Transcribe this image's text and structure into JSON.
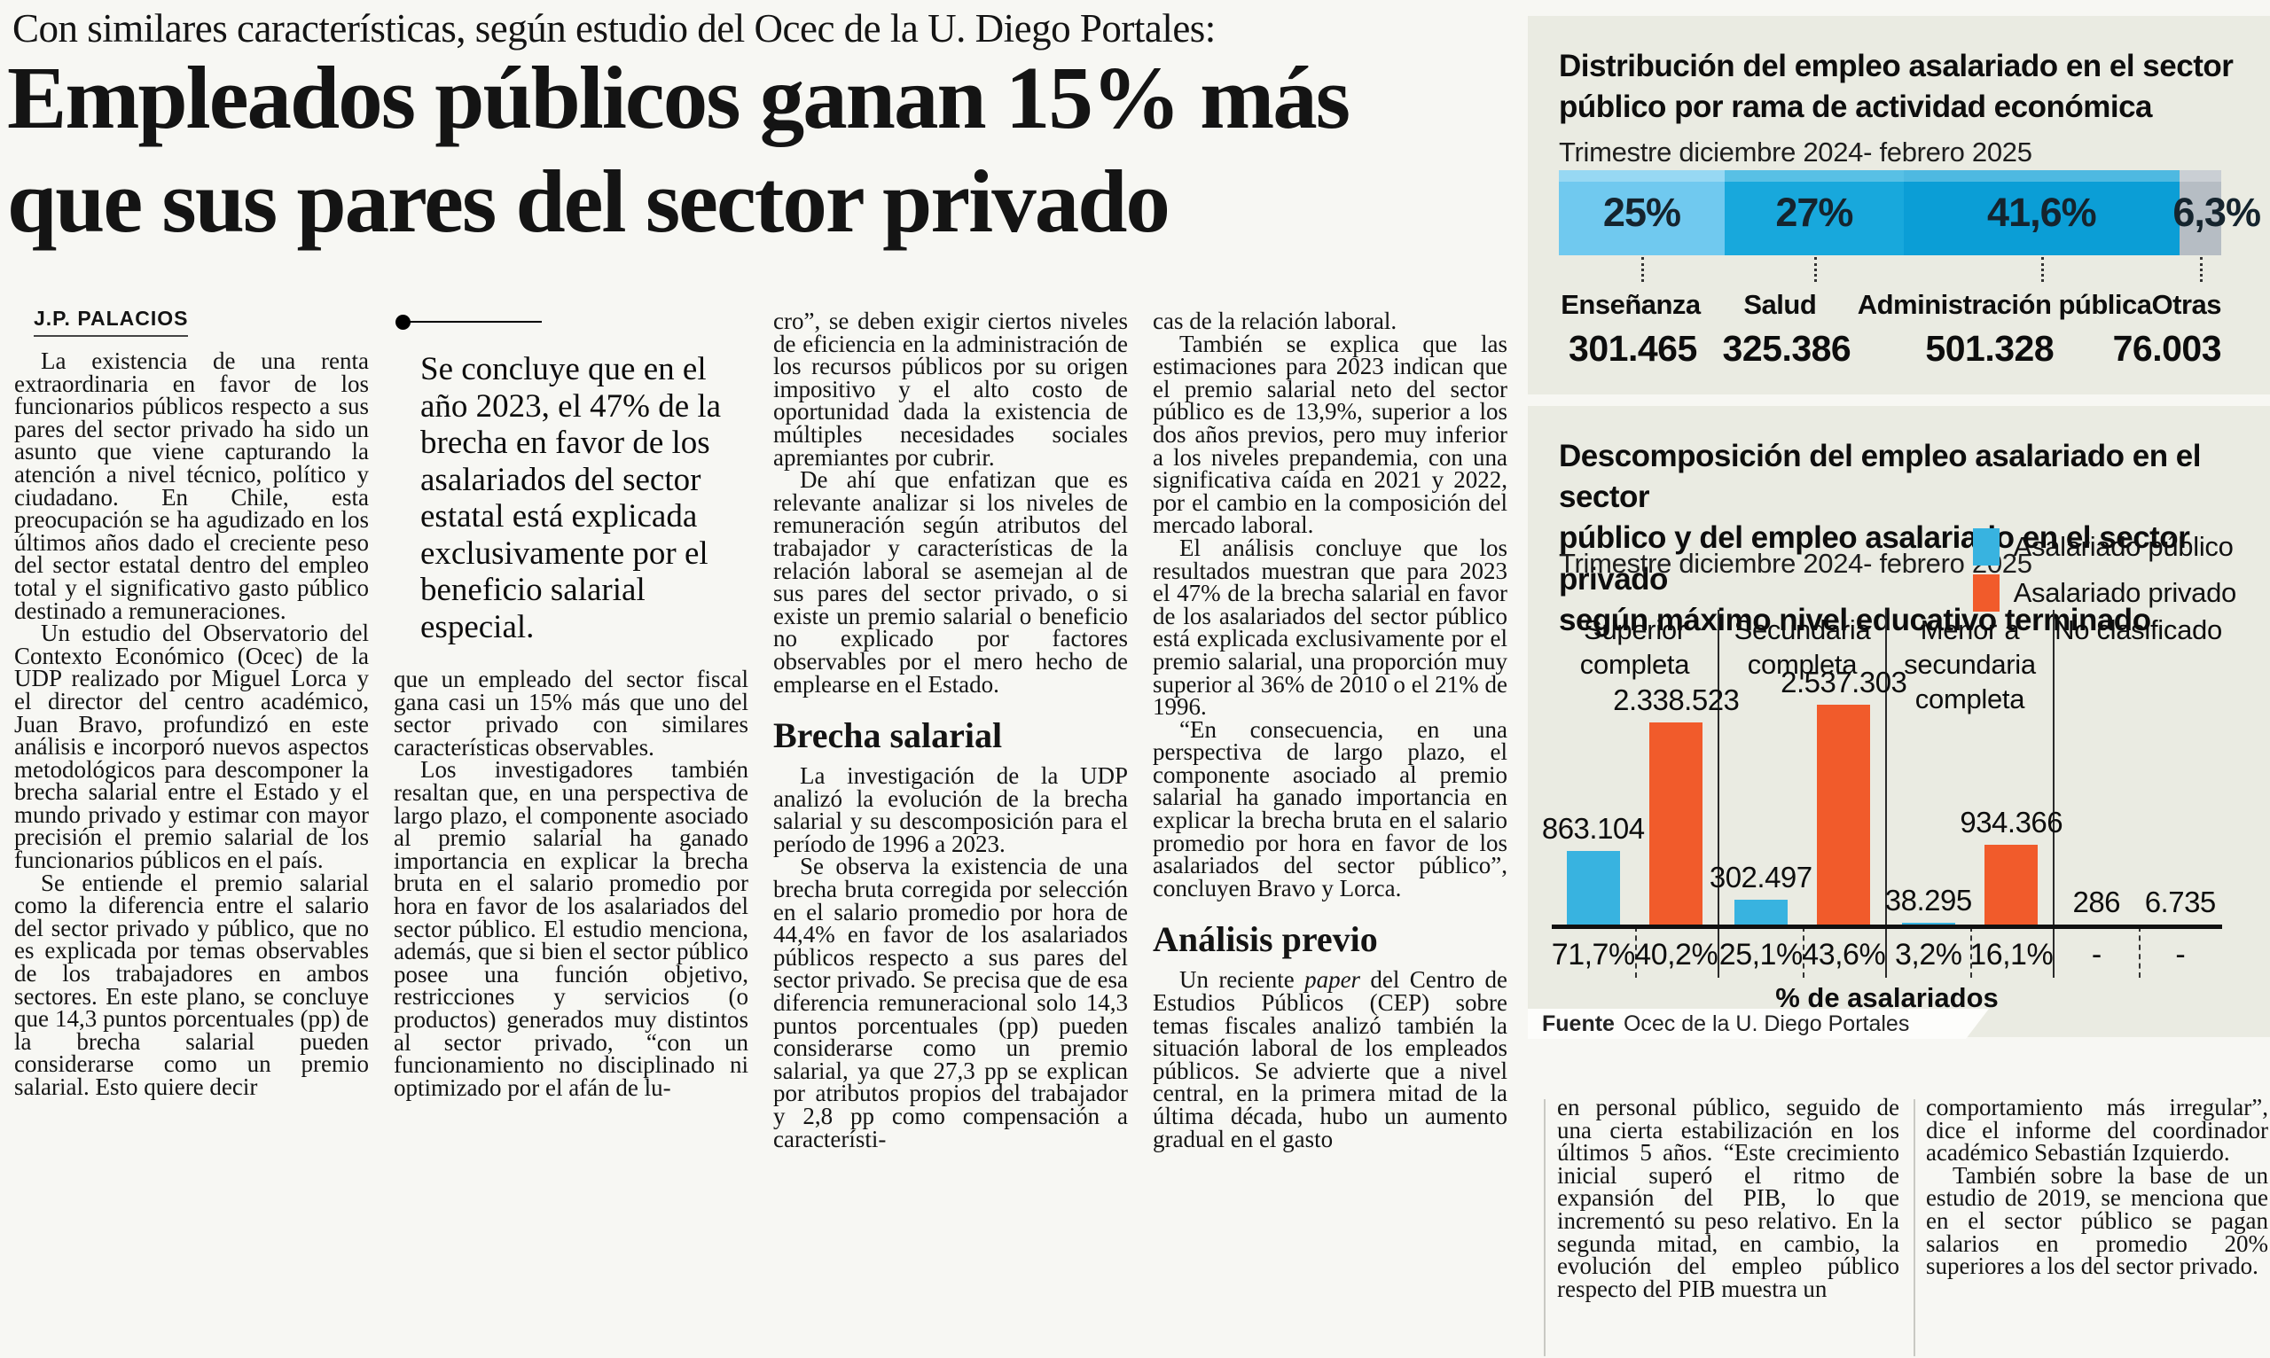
{
  "kicker": "Con similares características, según estudio del Ocec de la U. Diego Portales:",
  "headline_lines": [
    "Empleados públicos ganan 15% más",
    "que sus pares del sector privado"
  ],
  "byline": "J.P. PALACIOS",
  "article": {
    "columns": [
      {
        "blocks": [
          {
            "type": "para",
            "indent": true,
            "text": "La existencia de una renta extraordinaria en favor de los funcionarios públicos respecto a sus pares del sector privado ha sido un asunto que viene capturando la atención a nivel técnico, político y ciudadano. En Chile, esta preocupación se ha agudizado en los últimos años dado el creciente peso del sector estatal dentro del empleo total y el significativo gasto público destinado a remuneraciones."
          },
          {
            "type": "para",
            "indent": true,
            "text": "Un estudio del Observatorio del Contexto Económico (Ocec) de la UDP realizado por Miguel Lorca y el director del centro académico, Juan Bravo, profundizó en este análisis e incorporó nuevos aspectos metodológicos para descomponer la brecha salarial entre el Estado y el mundo privado y estimar con mayor precisión el premio salarial de los funcionarios públicos en el país."
          },
          {
            "type": "para",
            "indent": true,
            "text": "Se entiende el premio salarial como la diferencia entre el salario del sector privado y público, que no es explicada por temas observables de los trabajadores en ambos sectores. En este plano, se concluye que 14,3 puntos porcentuales (pp) de la brecha salarial pueden considerarse como un premio salarial. Esto quiere decir"
          }
        ]
      },
      {
        "blocks": [
          {
            "type": "rule"
          },
          {
            "type": "quote",
            "text": "Se concluye que en el año 2023, el 47% de la brecha en favor de los asalariados del sector estatal está explicada exclusivamente por el beneficio salarial especial."
          },
          {
            "type": "para",
            "indent": false,
            "text": "que un empleado del sector fiscal gana casi un 15% más que uno del sector privado con similares características observables."
          },
          {
            "type": "para",
            "indent": true,
            "text": "Los investigadores también resaltan que, en una perspectiva de largo plazo, el componente asociado al premio salarial ha ganado importancia en explicar la brecha bruta en el salario promedio por hora en favor de los asalariados del sector público. El estudio menciona, además, que si bien el sector público posee una función objetivo, restricciones y servicios (o productos) generados muy distintos al sector privado, “con un funcionamiento no disciplinado ni optimizado por el afán de lu-"
          }
        ]
      },
      {
        "blocks": [
          {
            "type": "para",
            "indent": false,
            "text": "cro”, se deben exigir ciertos niveles de eficiencia en la administración de los recursos públicos por su origen impositivo y el alto costo de oportunidad dada la existencia de múltiples necesidades sociales apremiantes por cubrir."
          },
          {
            "type": "para",
            "indent": true,
            "text": "De ahí que enfatizan que es relevante analizar si los niveles de remuneración según atributos del trabajador y características de la relación laboral se asemejan al de sus pares del sector privado, o si existe un premio salarial o beneficio no explicado por factores observables por el mero hecho de emplearse en el Estado."
          },
          {
            "type": "subhead",
            "text": "Brecha salarial"
          },
          {
            "type": "para",
            "indent": true,
            "text": "La investigación de la UDP analizó la evolución de la brecha salarial y su descomposición para el período de 1996 a 2023."
          },
          {
            "type": "para",
            "indent": true,
            "text": "Se observa la existencia de una brecha bruta corregida por selección en el salario promedio por hora de 44,4% en favor de los asalariados públicos respecto a sus pares del sector privado. Se precisa que de esa diferencia remuneracional solo 14,3 puntos porcentuales (pp) pueden considerarse como un premio salarial, ya que 27,3 pp se explican por atributos propios del trabajador y 2,8 pp como compensación a característi-"
          }
        ]
      },
      {
        "blocks": [
          {
            "type": "para",
            "indent": false,
            "text": "cas de la relación laboral."
          },
          {
            "type": "para",
            "indent": true,
            "text": "También se explica que las estimaciones para 2023 indican que el premio salarial neto del sector público es de 13,9%, superior a los dos años previos, pero muy inferior a los niveles prepandemia, con una significativa caída en 2021 y 2022, por el cambio en la composición del mercado laboral."
          },
          {
            "type": "para",
            "indent": true,
            "text": "El análisis concluye que los resultados muestran que para 2023 el 47% de la brecha salarial en favor de los asalariados del sector público está explicada exclusivamente por el premio salarial, una proporción muy superior al 36% de 2010 o el 21% de 1996."
          },
          {
            "type": "para",
            "indent": true,
            "text": "“En consecuencia, en una perspectiva de largo plazo, el componente asociado al premio salarial ha ganado importancia en explicar la brecha bruta en el salario promedio por hora en favor de los asalariados del sector público”, concluyen Bravo y Lorca."
          },
          {
            "type": "subhead",
            "text": "Análisis previo"
          },
          {
            "type": "para",
            "indent": true,
            "text": "Un reciente *paper* del Centro de Estudios Públicos (CEP) sobre temas fiscales analizó también la situación laboral de los empleados públicos. Se advierte que a nivel central, en la primera mitad de la última década, hubo un aumento gradual en el gasto"
          }
        ]
      }
    ]
  },
  "bottom": {
    "columns": [
      {
        "blocks": [
          {
            "type": "para",
            "indent": false,
            "text": "en personal público, seguido de una cierta estabilización en los últimos 5 años. “Este crecimiento inicial superó el ritmo de expansión del PIB, lo que incrementó su peso relativo. En la segunda mitad, en cambio, la evolución del empleo público respecto del PIB muestra un"
          }
        ]
      },
      {
        "blocks": [
          {
            "type": "para",
            "indent": false,
            "text": "comportamiento más irregular”, dice el informe del coordinador académico Sebastián Izquierdo."
          },
          {
            "type": "para",
            "indent": true,
            "text": "También sobre la base de un estudio de 2019, se menciona que en el sector público se pagan salarios en promedio 20% superiores a los del sector privado."
          }
        ]
      }
    ]
  },
  "chart_data": [
    {
      "type": "bar",
      "variant": "stacked-horizontal",
      "title": "Distribución del empleo asalariado en el sector público por rama de actividad económica",
      "title_lines": [
        "Distribución del empleo asalariado en el sector",
        "público por rama de actividad económica"
      ],
      "subtitle": "Trimestre diciembre 2024- febrero 2025",
      "categories": [
        "Enseñanza",
        "Salud",
        "Administración pública",
        "Otras"
      ],
      "percent_labels": [
        "25%",
        "27%",
        "41,6%",
        "6,3%"
      ],
      "percents": [
        25,
        27,
        41.6,
        6.3
      ],
      "value_labels": [
        "301.465",
        "325.386",
        "501.328",
        "76.003"
      ],
      "values": [
        301465,
        325386,
        501328,
        76003
      ],
      "colors": [
        "#70c9ef",
        "#18a8dc",
        "#0b9ed6",
        "#b6bdc4"
      ],
      "legend_position": "none",
      "grid": false
    },
    {
      "type": "bar",
      "variant": "grouped-vertical",
      "title": "Descomposición del empleo asalariado en el sector público y del empleo asalariado en el sector privado según máximo nivel educativo terminado",
      "title_lines": [
        "Descomposición del empleo asalariado en el sector",
        "público y del empleo asalariado en el sector privado",
        "según máximo nivel educativo terminado"
      ],
      "subtitle": "Trimestre diciembre 2024- febrero 2025",
      "legend": [
        "Asalariado público",
        "Asalariado privado"
      ],
      "legend_colors": [
        "#38b3e0",
        "#f15b2b"
      ],
      "legend_position": "top-right",
      "categories": [
        "Superior completa",
        "Secundaria completa",
        "Menor a secundaria completa",
        "No clasificado"
      ],
      "series": [
        {
          "name": "Asalariado público",
          "values": [
            863104,
            302497,
            38295,
            286
          ],
          "labels": [
            "863.104",
            "302.497",
            "38.295",
            "286"
          ]
        },
        {
          "name": "Asalariado privado",
          "values": [
            2338523,
            2537303,
            934366,
            6735
          ],
          "labels": [
            "2.338.523",
            "2.537.303",
            "934.366",
            "6.735"
          ]
        }
      ],
      "percent_row": [
        [
          "71,7%",
          "40,2%"
        ],
        [
          "25,1%",
          "43,6%"
        ],
        [
          "3,2%",
          "16,1%"
        ],
        [
          "-",
          "-"
        ]
      ],
      "xlabel": "% de asalariados",
      "ymax": 2537303,
      "grid": false,
      "source_label": "Fuente",
      "source": "Ocec de la U. Diego Portales"
    }
  ],
  "colors": {
    "page_bg": "#f7f7f3",
    "panel_bg": "#eaebe2",
    "text": "#141414",
    "pct_text": "#15242e",
    "public_blue": "#38b3e0",
    "private_orange": "#f15b2b"
  }
}
